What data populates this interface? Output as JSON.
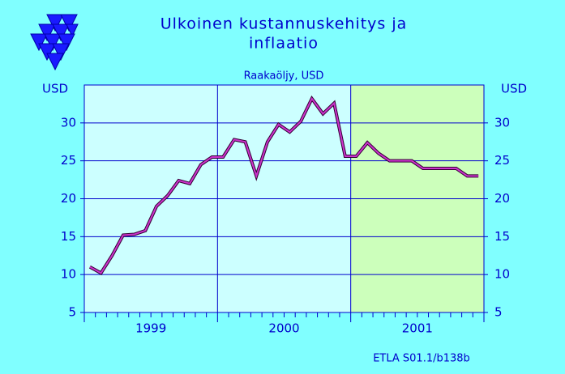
{
  "chart_data": {
    "type": "line",
    "title": [
      "Ulkoinen  kustannuskehitys  ja",
      "inflaatio"
    ],
    "subtitle": "Raakaöljy, USD",
    "y_unit": "USD",
    "footer": "ETLA S01.1/b138b",
    "year_labels": [
      "1999",
      "2000",
      "2001"
    ],
    "shaded": [
      false,
      false,
      true
    ],
    "series": [
      {
        "name": "Raakaöljy",
        "color": "#cc33cc",
        "values": [
          11.0,
          10.2,
          12.5,
          15.2,
          15.3,
          15.8,
          19.0,
          20.4,
          22.4,
          22.0,
          24.5,
          25.5,
          25.5,
          27.8,
          27.5,
          23.0,
          27.5,
          29.8,
          28.8,
          30.2,
          33.2,
          31.2,
          32.6,
          25.6,
          25.6,
          27.4,
          26.0,
          25.0,
          25.0,
          25.0,
          24.0,
          24.0,
          24.0,
          24.0,
          23.0,
          23.0
        ]
      }
    ],
    "ylim": [
      5,
      35
    ],
    "yticks": [
      5,
      10,
      15,
      20,
      25,
      30
    ],
    "grid": true
  }
}
